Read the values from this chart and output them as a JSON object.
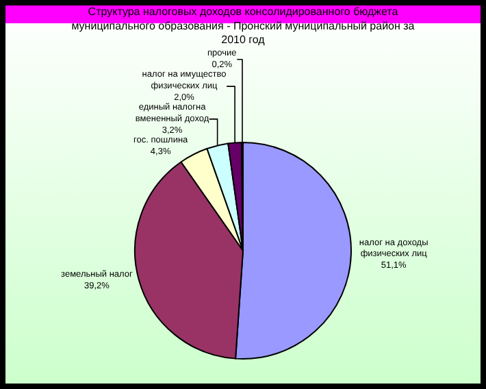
{
  "chart_data": {
    "type": "pie",
    "title": "Структура налоговых доходов консолидированного бюджета муниципального образования - Пронский муниципальный район за 2010 год",
    "categories": [
      "налог на доходы физических лиц",
      "земельный налог",
      "гос. пошлина",
      "единый налогна вмененный доход",
      "налог на имущество физических лиц",
      "прочие"
    ],
    "values": [
      51.1,
      39.2,
      4.3,
      3.2,
      2.0,
      0.2
    ],
    "colors": [
      "#9999ff",
      "#993366",
      "#ffffcc",
      "#ccffff",
      "#660066",
      "#ff8080"
    ],
    "value_labels": [
      "51,1%",
      "39,2%",
      "4,3%",
      "3,2%",
      "2,0%",
      "0,2%"
    ],
    "legend": false
  }
}
